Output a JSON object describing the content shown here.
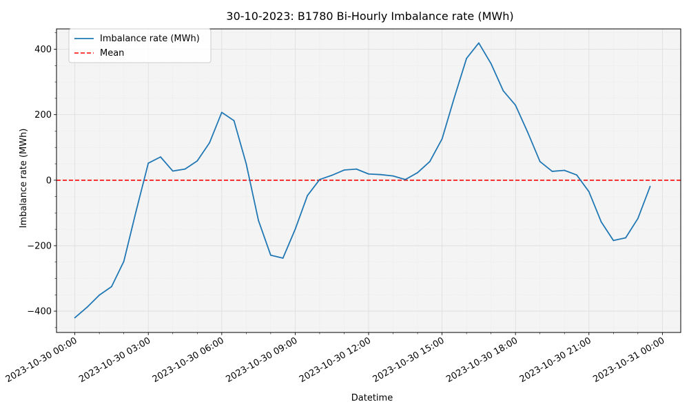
{
  "chart_data": {
    "type": "line",
    "title": "30-10-2023: B1780 Bi-Hourly Imbalance rate (MWh)",
    "xlabel": "Datetime",
    "ylabel": "Imbalance rate (MWh)",
    "ylim": [
      -465,
      462
    ],
    "xlim": [
      "2023-10-29 23:15",
      "2023-10-31 00:45"
    ],
    "yticks": [
      -400,
      -200,
      0,
      200,
      400
    ],
    "yticks_labels": [
      "−400",
      "−200",
      "0",
      "200",
      "400"
    ],
    "xticks": [
      "2023-10-30 00:00",
      "2023-10-30 03:00",
      "2023-10-30 06:00",
      "2023-10-30 09:00",
      "2023-10-30 12:00",
      "2023-10-30 15:00",
      "2023-10-30 18:00",
      "2023-10-30 21:00",
      "2023-10-31 00:00"
    ],
    "grid": true,
    "background": "#f4f4f4",
    "legend_position": "upper-left",
    "series": [
      {
        "name": "Imbalance rate (MWh)",
        "color": "#1f77b4",
        "style": "solid",
        "x": [
          "2023-10-30 00:00",
          "2023-10-30 00:30",
          "2023-10-30 01:00",
          "2023-10-30 01:30",
          "2023-10-30 02:00",
          "2023-10-30 02:30",
          "2023-10-30 03:00",
          "2023-10-30 03:30",
          "2023-10-30 04:00",
          "2023-10-30 04:30",
          "2023-10-30 05:00",
          "2023-10-30 05:30",
          "2023-10-30 06:00",
          "2023-10-30 06:30",
          "2023-10-30 07:00",
          "2023-10-30 07:30",
          "2023-10-30 08:00",
          "2023-10-30 08:30",
          "2023-10-30 09:00",
          "2023-10-30 09:30",
          "2023-10-30 10:00",
          "2023-10-30 10:30",
          "2023-10-30 11:00",
          "2023-10-30 11:30",
          "2023-10-30 12:00",
          "2023-10-30 12:30",
          "2023-10-30 13:00",
          "2023-10-30 13:30",
          "2023-10-30 14:00",
          "2023-10-30 14:30",
          "2023-10-30 15:00",
          "2023-10-30 15:30",
          "2023-10-30 16:00",
          "2023-10-30 16:30",
          "2023-10-30 17:00",
          "2023-10-30 17:30",
          "2023-10-30 18:00",
          "2023-10-30 18:30",
          "2023-10-30 19:00",
          "2023-10-30 19:30",
          "2023-10-30 20:00",
          "2023-10-30 20:30",
          "2023-10-30 21:00",
          "2023-10-30 21:30",
          "2023-10-30 22:00",
          "2023-10-30 22:30",
          "2023-10-30 23:00",
          "2023-10-30 23:30"
        ],
        "values": [
          -420,
          -388,
          -351,
          -325,
          -248,
          -95,
          52,
          71,
          28,
          34,
          59,
          114,
          207,
          182,
          50,
          -123,
          -229,
          -238,
          -150,
          -47,
          2,
          15,
          31,
          34,
          19,
          17,
          13,
          2,
          23,
          57,
          126,
          252,
          372,
          419,
          356,
          273,
          229,
          146,
          57,
          27,
          30,
          16,
          -35,
          -127,
          -184,
          -176,
          -117,
          -19
        ]
      },
      {
        "name": "Mean",
        "color": "#ff0000",
        "style": "dashed",
        "value": 0
      }
    ]
  }
}
